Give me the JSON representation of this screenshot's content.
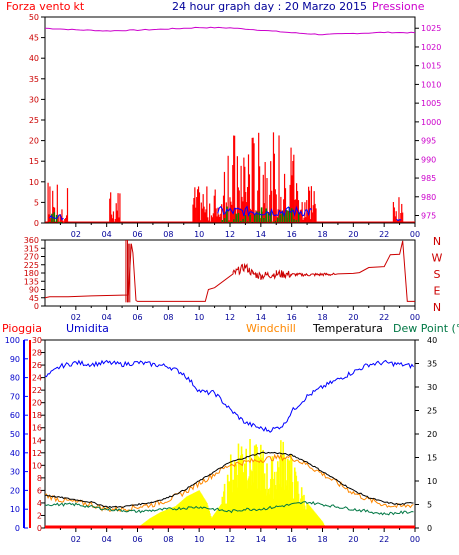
{
  "header": {
    "wind_label": "Forza vento",
    "wind_unit": "kt",
    "title": "24 hour graph day : 20 Marzo 2015",
    "pressure_label": "Pressione"
  },
  "colors": {
    "wind": "#ff0000",
    "gust": "#008800",
    "direction": "#cc0000",
    "pressure": "#cc00cc",
    "rain": "#ff0000",
    "humidity": "#0000ff",
    "windchill": "#ff8800",
    "temperature": "#000000",
    "dewpoint": "#007744",
    "solar": "#ffff00",
    "frame": "#000000",
    "grid": "#888888"
  },
  "chart_data": [
    {
      "id": "wind",
      "type": "bar",
      "x_ticks": [
        "02",
        "04",
        "06",
        "08",
        "10",
        "12",
        "14",
        "16",
        "18",
        "20",
        "22",
        "00"
      ],
      "y_left_ticks": [
        "0",
        "5",
        "10",
        "15",
        "20",
        "25",
        "30",
        "35",
        "40",
        "45",
        "50"
      ],
      "y_left_range": [
        0,
        50
      ],
      "y_right_ticks": [
        "975",
        "980",
        "985",
        "990",
        "995",
        "1000",
        "1005",
        "1010",
        "1015",
        "1020",
        "1025"
      ],
      "y_right_range": [
        973,
        1028
      ],
      "series": [
        {
          "name": "Forza vento",
          "kind": "wind_bars",
          "segments": [
            [
              0.2,
              1.5,
              7
            ],
            [
              4.2,
              4.9,
              5
            ],
            [
              9.6,
              17.6,
              14
            ],
            [
              22.6,
              23.3,
              4
            ]
          ]
        },
        {
          "kind": "gust_bars",
          "segments": [
            [
              0.3,
              1.2,
              3
            ],
            [
              11.5,
              16.5,
              4
            ]
          ]
        },
        {
          "kind": "avg_line",
          "segments": [
            [
              0.3,
              1.2,
              2
            ],
            [
              11.2,
              17.3,
              4
            ],
            [
              22.8,
              23.2,
              1
            ]
          ]
        },
        {
          "name": "Pressione",
          "kind": "line",
          "x": [
            0,
            2,
            4,
            6,
            8,
            10,
            12,
            14,
            16,
            18,
            20,
            22,
            24
          ],
          "y": [
            1025,
            1024.6,
            1024.3,
            1024.5,
            1024.8,
            1025.2,
            1025.1,
            1024.5,
            1023.8,
            1023.3,
            1023.6,
            1023.9,
            1023.8
          ]
        }
      ]
    },
    {
      "id": "direction",
      "type": "line",
      "x_ticks": [
        "02",
        "04",
        "06",
        "08",
        "10",
        "12",
        "14",
        "16",
        "18",
        "20",
        "22",
        "00"
      ],
      "y_ticks": [
        "0",
        "45",
        "90",
        "135",
        "180",
        "225",
        "270",
        "315",
        "360"
      ],
      "y_range": [
        0,
        360
      ],
      "compass_labels": [
        "N",
        "W",
        "S",
        "E",
        "N"
      ],
      "series": [
        {
          "x": [
            0,
            0.3,
            1.5,
            3,
            5.4,
            5.6,
            5.7,
            5.9,
            6,
            7,
            8,
            9,
            10.4,
            10.6,
            11,
            12.2,
            13,
            13.5,
            14,
            15,
            16,
            17,
            18,
            18.8,
            19,
            20,
            20.4,
            21,
            22,
            22.4,
            23,
            23.2,
            23.5,
            24
          ],
          "y": [
            45,
            50,
            50,
            55,
            60,
            340,
            290,
            30,
            25,
            25,
            25,
            25,
            25,
            90,
            100,
            175,
            215,
            175,
            165,
            175,
            172,
            170,
            172,
            172,
            175,
            178,
            182,
            210,
            215,
            280,
            282,
            355,
            25,
            25
          ]
        }
      ]
    },
    {
      "id": "climate",
      "type": "line",
      "x_ticks": [
        "02",
        "04",
        "06",
        "08",
        "10",
        "12",
        "14",
        "16",
        "18",
        "20",
        "22",
        "00"
      ],
      "y_humidity_ticks": [
        "0",
        "10",
        "20",
        "30",
        "40",
        "50",
        "60",
        "70",
        "80",
        "90",
        "100"
      ],
      "y_rain_ticks": [
        "0",
        "2",
        "4",
        "6",
        "8",
        "10",
        "12",
        "14",
        "16",
        "18",
        "20",
        "22",
        "24",
        "26",
        "28",
        "30"
      ],
      "y_temp_ticks": [
        "0",
        "5",
        "10",
        "15",
        "20",
        "25",
        "30",
        "35",
        "40"
      ],
      "labels": {
        "rain": "Pioggia",
        "humidity": "Umidita",
        "windchill": "Windchill",
        "temperature": "Temperatura",
        "dewpoint": "Dew Point (°C"
      },
      "series": [
        {
          "name": "Umidita",
          "x": [
            0,
            1,
            2,
            3,
            4,
            5,
            6,
            7,
            8,
            9,
            10,
            10.5,
            11,
            12,
            13,
            14,
            14.5,
            15,
            15.5,
            16,
            17,
            18,
            19,
            20,
            21,
            22,
            23,
            24
          ],
          "y": [
            80,
            86,
            88,
            87,
            88,
            87,
            88,
            87,
            86,
            82,
            73,
            72,
            72,
            63,
            56,
            53,
            52,
            53,
            55,
            62,
            70,
            75,
            79,
            83,
            87,
            88,
            87,
            86
          ]
        },
        {
          "name": "Temperatura",
          "x": [
            0,
            1,
            2,
            3,
            4,
            5,
            6,
            7,
            8,
            9,
            10,
            11,
            12,
            13,
            14,
            15,
            16,
            17,
            18,
            19,
            20,
            21,
            22,
            23,
            24
          ],
          "y": [
            7,
            6.5,
            6,
            5.5,
            4.5,
            4.5,
            5,
            5.5,
            6.5,
            8,
            10,
            12,
            14,
            15,
            16,
            16,
            15.5,
            14,
            12,
            10,
            8,
            6.5,
            5.5,
            5,
            5.5
          ]
        },
        {
          "name": "Windchill",
          "x": [
            0,
            1,
            2,
            3,
            4,
            5,
            6,
            7,
            8,
            9,
            10,
            11,
            12,
            13,
            14,
            15,
            16,
            17,
            18,
            19,
            20,
            21,
            22,
            23,
            24
          ],
          "y": [
            7,
            6,
            5.5,
            5,
            4,
            4,
            4.5,
            5,
            6,
            7.5,
            9.5,
            11.5,
            13.5,
            14,
            14.5,
            15,
            15,
            13.5,
            11.5,
            9.5,
            7.5,
            6,
            5,
            4.5,
            5
          ]
        },
        {
          "name": "Dew Point (°C",
          "x": [
            0,
            2,
            4,
            6,
            8,
            10,
            11,
            12,
            13,
            14,
            15,
            16,
            17,
            18,
            20,
            22,
            24
          ],
          "y": [
            5,
            5,
            4,
            3.5,
            4,
            4.5,
            4,
            3.5,
            4,
            4,
            4.5,
            5,
            5.5,
            5,
            4,
            3,
            3.5
          ]
        },
        {
          "kind": "solar",
          "x": [
            0,
            6,
            6.8,
            7.5,
            8.5,
            9.2,
            10,
            10.5,
            10.8,
            11.5,
            12,
            12.5,
            13,
            13.5,
            14,
            14.5,
            15,
            15.5,
            16,
            16.5,
            17,
            17.5,
            18,
            18.2,
            24
          ],
          "y": [
            0,
            0,
            1.5,
            2.5,
            3.5,
            5,
            6,
            4,
            1.5,
            4,
            9,
            12,
            13,
            10,
            11,
            8,
            10,
            12,
            9,
            6,
            4,
            2.5,
            1,
            0,
            0
          ]
        },
        {
          "kind": "rain",
          "x": [
            0,
            24
          ],
          "y": [
            0,
            0
          ]
        }
      ]
    }
  ]
}
